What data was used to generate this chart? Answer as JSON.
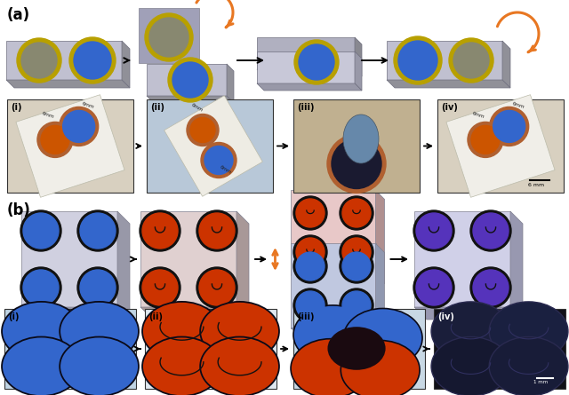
{
  "figure_label_a": "(a)",
  "figure_label_b": "(b)",
  "panel_a_labels": [
    "(i)",
    "(ii)",
    "(iii)",
    "(iv)"
  ],
  "panel_b_labels": [
    "(i)",
    "(ii)",
    "(iii)",
    "(iv)"
  ],
  "background_color": "#ffffff",
  "orange_color": "#E87722",
  "blue_gel": "#3366CC",
  "red_gel": "#CC3300",
  "purple_gel": "#5533BB",
  "dark_blue_gel": "#1a2060",
  "yellow_ring": "#B8A000",
  "copper_ring": "#B06030",
  "plate_face": "#C0C0D0",
  "plate_shadow_r": "#909098",
  "plate_shadow_b": "#909098",
  "plate_edge": "#808090",
  "sq_face": "#D8D8E8",
  "sq_shadow": "#9898A8",
  "photo_a_i_bg": "#D8D0C0",
  "photo_a_ii_bg": "#B8C8D8",
  "photo_a_iii_bg": "#C0B090",
  "photo_a_iv_bg": "#D8D0C0",
  "photo_b_i_bg": "#C0D4E4",
  "photo_b_ii_bg": "#E0E8F0",
  "photo_b_iii_bg": "#C8D8E4",
  "photo_b_iv_bg": "#101018"
}
